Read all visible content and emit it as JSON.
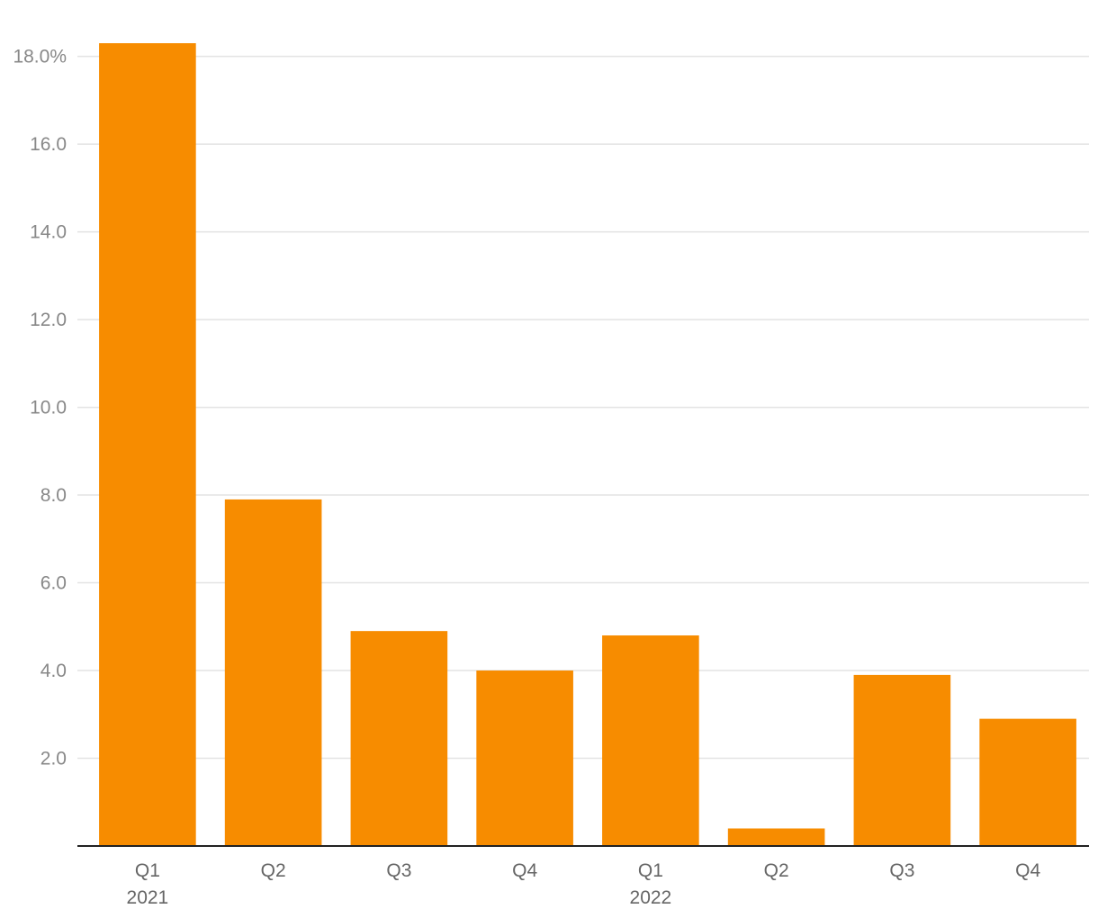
{
  "chart_data": {
    "type": "bar",
    "categories": [
      "Q1",
      "Q2",
      "Q3",
      "Q4",
      "Q1",
      "Q2",
      "Q3",
      "Q4"
    ],
    "year_labels": [
      "2021",
      "",
      "",
      "",
      "2022",
      "",
      "",
      ""
    ],
    "values": [
      18.3,
      7.9,
      4.9,
      4.0,
      4.8,
      0.4,
      3.9,
      2.9
    ],
    "y_ticks": [
      2,
      4,
      6,
      8,
      10,
      12,
      14,
      16,
      18
    ],
    "y_tick_labels": [
      "2.0",
      "4.0",
      "6.0",
      "8.0",
      "10.0",
      "12.0",
      "14.0",
      "16.0",
      "18.0%"
    ],
    "ylim": [
      0,
      18.3
    ],
    "grid": true,
    "bar_color": "#f78c00",
    "title": "",
    "xlabel": "",
    "ylabel": ""
  }
}
